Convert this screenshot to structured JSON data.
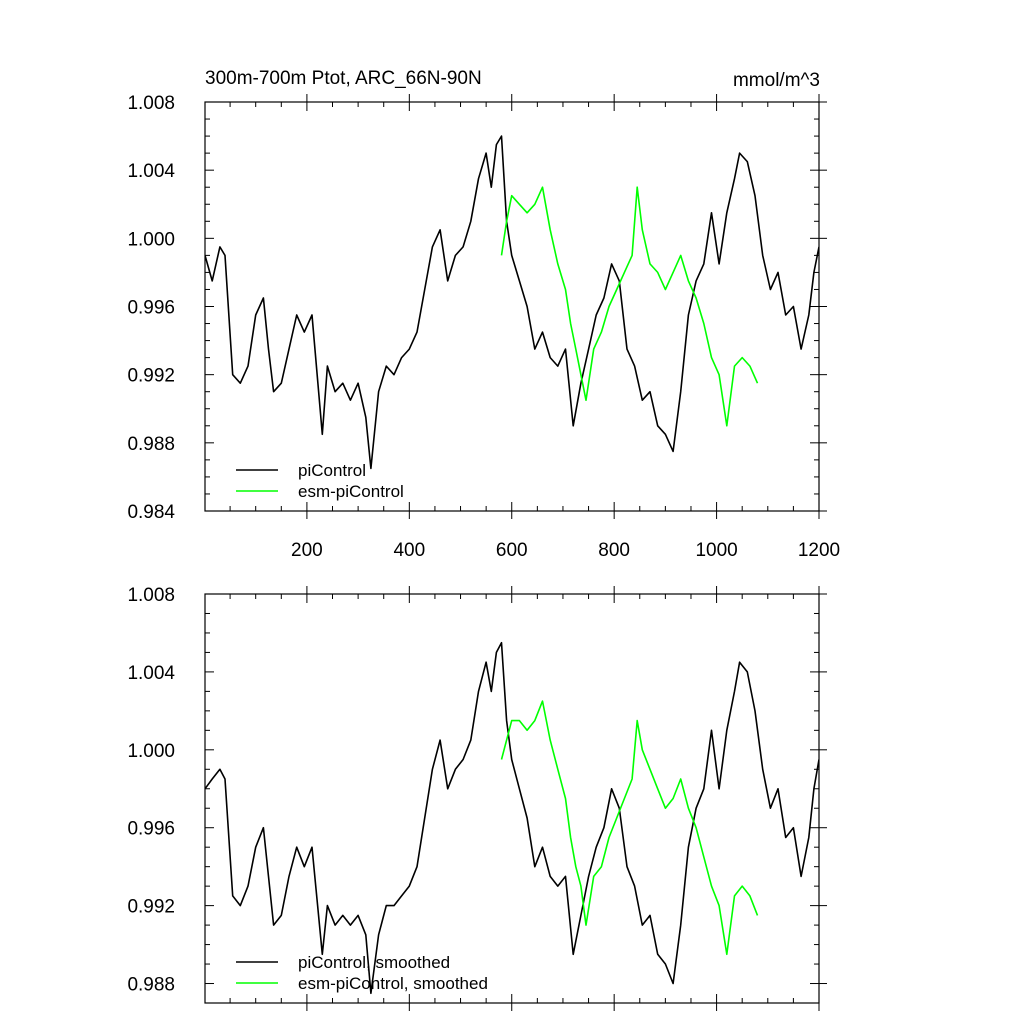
{
  "figure": {
    "title_left": "300m-700m Ptot, ARC_66N-90N",
    "title_right": "mmol/m^3"
  },
  "chart_data": [
    {
      "type": "line",
      "title": "300m-700m Ptot, ARC_66N-90N",
      "units": "mmol/m^3",
      "xlim": [
        1,
        1200
      ],
      "ylim": [
        0.984,
        1.008
      ],
      "xticks": [
        200,
        400,
        600,
        800,
        1000,
        1200
      ],
      "xtick_labels": [
        "200",
        "400",
        "600",
        "800",
        "1000",
        "1200"
      ],
      "yticks": [
        0.984,
        0.988,
        0.992,
        0.996,
        1.0,
        1.004,
        1.008
      ],
      "ytick_labels": [
        "0.984",
        "0.988",
        "0.992",
        "0.996",
        "1.000",
        "1.004",
        "1.008"
      ],
      "legend_position": "bottom-left",
      "series": [
        {
          "name": "piControl",
          "color": "#000000",
          "x": [
            1,
            15,
            30,
            40,
            55,
            70,
            85,
            100,
            115,
            125,
            135,
            150,
            165,
            180,
            195,
            210,
            230,
            240,
            255,
            270,
            285,
            300,
            315,
            325,
            340,
            355,
            370,
            385,
            400,
            415,
            430,
            445,
            460,
            475,
            490,
            505,
            520,
            535,
            550,
            560,
            570,
            580,
            590,
            600,
            615,
            630,
            645,
            660,
            675,
            690,
            705,
            720,
            735,
            750,
            765,
            780,
            795,
            810,
            825,
            840,
            855,
            870,
            885,
            900,
            915,
            930,
            945,
            960,
            975,
            990,
            1005,
            1020,
            1035,
            1045,
            1060,
            1075,
            1090,
            1105,
            1120,
            1135,
            1150,
            1165,
            1180,
            1190,
            1200
          ],
          "y": [
            0.999,
            0.9975,
            0.9995,
            0.999,
            0.992,
            0.9915,
            0.9925,
            0.9955,
            0.9965,
            0.9935,
            0.991,
            0.9915,
            0.9935,
            0.9955,
            0.9945,
            0.9955,
            0.9885,
            0.9925,
            0.991,
            0.9915,
            0.9905,
            0.9915,
            0.9895,
            0.9865,
            0.991,
            0.9925,
            0.992,
            0.993,
            0.9935,
            0.9945,
            0.997,
            0.9995,
            1.0005,
            0.9975,
            0.999,
            0.9995,
            1.001,
            1.0035,
            1.005,
            1.003,
            1.0055,
            1.006,
            1.001,
            0.999,
            0.9975,
            0.996,
            0.9935,
            0.9945,
            0.993,
            0.9925,
            0.9935,
            0.989,
            0.9915,
            0.9935,
            0.9955,
            0.9965,
            0.9985,
            0.9975,
            0.9935,
            0.9925,
            0.9905,
            0.991,
            0.989,
            0.9885,
            0.9875,
            0.991,
            0.9955,
            0.9975,
            0.9985,
            1.0015,
            0.9985,
            1.0015,
            1.0035,
            1.005,
            1.0045,
            1.0025,
            0.999,
            0.997,
            0.998,
            0.9955,
            0.996,
            0.9935,
            0.9955,
            0.998,
            0.9995
          ]
        },
        {
          "name": "esm-piControl",
          "color": "#00ff00",
          "x": [
            580,
            590,
            600,
            615,
            630,
            645,
            660,
            675,
            690,
            705,
            715,
            725,
            735,
            745,
            760,
            775,
            790,
            805,
            820,
            835,
            845,
            855,
            870,
            885,
            900,
            915,
            930,
            945,
            960,
            975,
            990,
            1005,
            1020,
            1035,
            1050,
            1065,
            1080
          ],
          "y": [
            0.999,
            1.001,
            1.0025,
            1.002,
            1.0015,
            1.002,
            1.003,
            1.0005,
            0.9985,
            0.997,
            0.995,
            0.9935,
            0.992,
            0.9905,
            0.9935,
            0.9945,
            0.996,
            0.997,
            0.998,
            0.999,
            1.003,
            1.0005,
            0.9985,
            0.998,
            0.997,
            0.998,
            0.999,
            0.9975,
            0.9965,
            0.995,
            0.993,
            0.992,
            0.989,
            0.9925,
            0.993,
            0.9925,
            0.9915
          ]
        }
      ]
    },
    {
      "type": "line",
      "xlim": [
        1,
        1200
      ],
      "ylim": [
        0.987,
        1.008
      ],
      "yticks": [
        0.988,
        0.992,
        0.996,
        1.0,
        1.004,
        1.008
      ],
      "ytick_labels": [
        "0.988",
        "0.992",
        "0.996",
        "1.000",
        "1.004",
        "1.008"
      ],
      "xticks": [
        200,
        400,
        600,
        800,
        1000,
        1200
      ],
      "legend_position": "bottom-left",
      "series": [
        {
          "name": "piControl, smoothed",
          "color": "#000000",
          "x": [
            1,
            15,
            30,
            40,
            55,
            70,
            85,
            100,
            115,
            125,
            135,
            150,
            165,
            180,
            195,
            210,
            230,
            240,
            255,
            270,
            285,
            300,
            315,
            325,
            340,
            355,
            370,
            385,
            400,
            415,
            430,
            445,
            460,
            475,
            490,
            505,
            520,
            535,
            550,
            560,
            570,
            580,
            590,
            600,
            615,
            630,
            645,
            660,
            675,
            690,
            705,
            720,
            735,
            750,
            765,
            780,
            795,
            810,
            825,
            840,
            855,
            870,
            885,
            900,
            915,
            930,
            945,
            960,
            975,
            990,
            1005,
            1020,
            1035,
            1045,
            1060,
            1075,
            1090,
            1105,
            1120,
            1135,
            1150,
            1165,
            1180,
            1190,
            1200
          ],
          "y": [
            0.998,
            0.9985,
            0.999,
            0.9985,
            0.9925,
            0.992,
            0.993,
            0.995,
            0.996,
            0.9935,
            0.991,
            0.9915,
            0.9935,
            0.995,
            0.994,
            0.995,
            0.9895,
            0.992,
            0.991,
            0.9915,
            0.991,
            0.9915,
            0.9905,
            0.9875,
            0.9905,
            0.992,
            0.992,
            0.9925,
            0.993,
            0.994,
            0.9965,
            0.999,
            1.0005,
            0.998,
            0.999,
            0.9995,
            1.0005,
            1.003,
            1.0045,
            1.003,
            1.005,
            1.0055,
            1.0015,
            0.9995,
            0.998,
            0.9965,
            0.994,
            0.995,
            0.9935,
            0.993,
            0.9935,
            0.9895,
            0.9915,
            0.9935,
            0.995,
            0.996,
            0.998,
            0.997,
            0.994,
            0.993,
            0.991,
            0.9915,
            0.9895,
            0.989,
            0.988,
            0.991,
            0.995,
            0.997,
            0.998,
            1.001,
            0.998,
            1.001,
            1.003,
            1.0045,
            1.004,
            1.002,
            0.999,
            0.997,
            0.998,
            0.9955,
            0.996,
            0.9935,
            0.9955,
            0.998,
            0.9995
          ]
        },
        {
          "name": "esm-piControl, smoothed",
          "color": "#00ff00",
          "x": [
            580,
            590,
            600,
            615,
            630,
            645,
            660,
            675,
            690,
            705,
            715,
            725,
            735,
            745,
            760,
            775,
            790,
            805,
            820,
            835,
            845,
            855,
            870,
            885,
            900,
            915,
            930,
            945,
            960,
            975,
            990,
            1005,
            1020,
            1035,
            1050,
            1065,
            1080
          ],
          "y": [
            0.9995,
            1.0005,
            1.0015,
            1.0015,
            1.001,
            1.0015,
            1.0025,
            1.0005,
            0.999,
            0.9975,
            0.9955,
            0.994,
            0.993,
            0.991,
            0.9935,
            0.994,
            0.9955,
            0.9965,
            0.9975,
            0.9985,
            1.0015,
            1.0,
            0.999,
            0.998,
            0.997,
            0.9975,
            0.9985,
            0.997,
            0.996,
            0.9945,
            0.993,
            0.992,
            0.9895,
            0.9925,
            0.993,
            0.9925,
            0.9915
          ]
        }
      ]
    }
  ]
}
